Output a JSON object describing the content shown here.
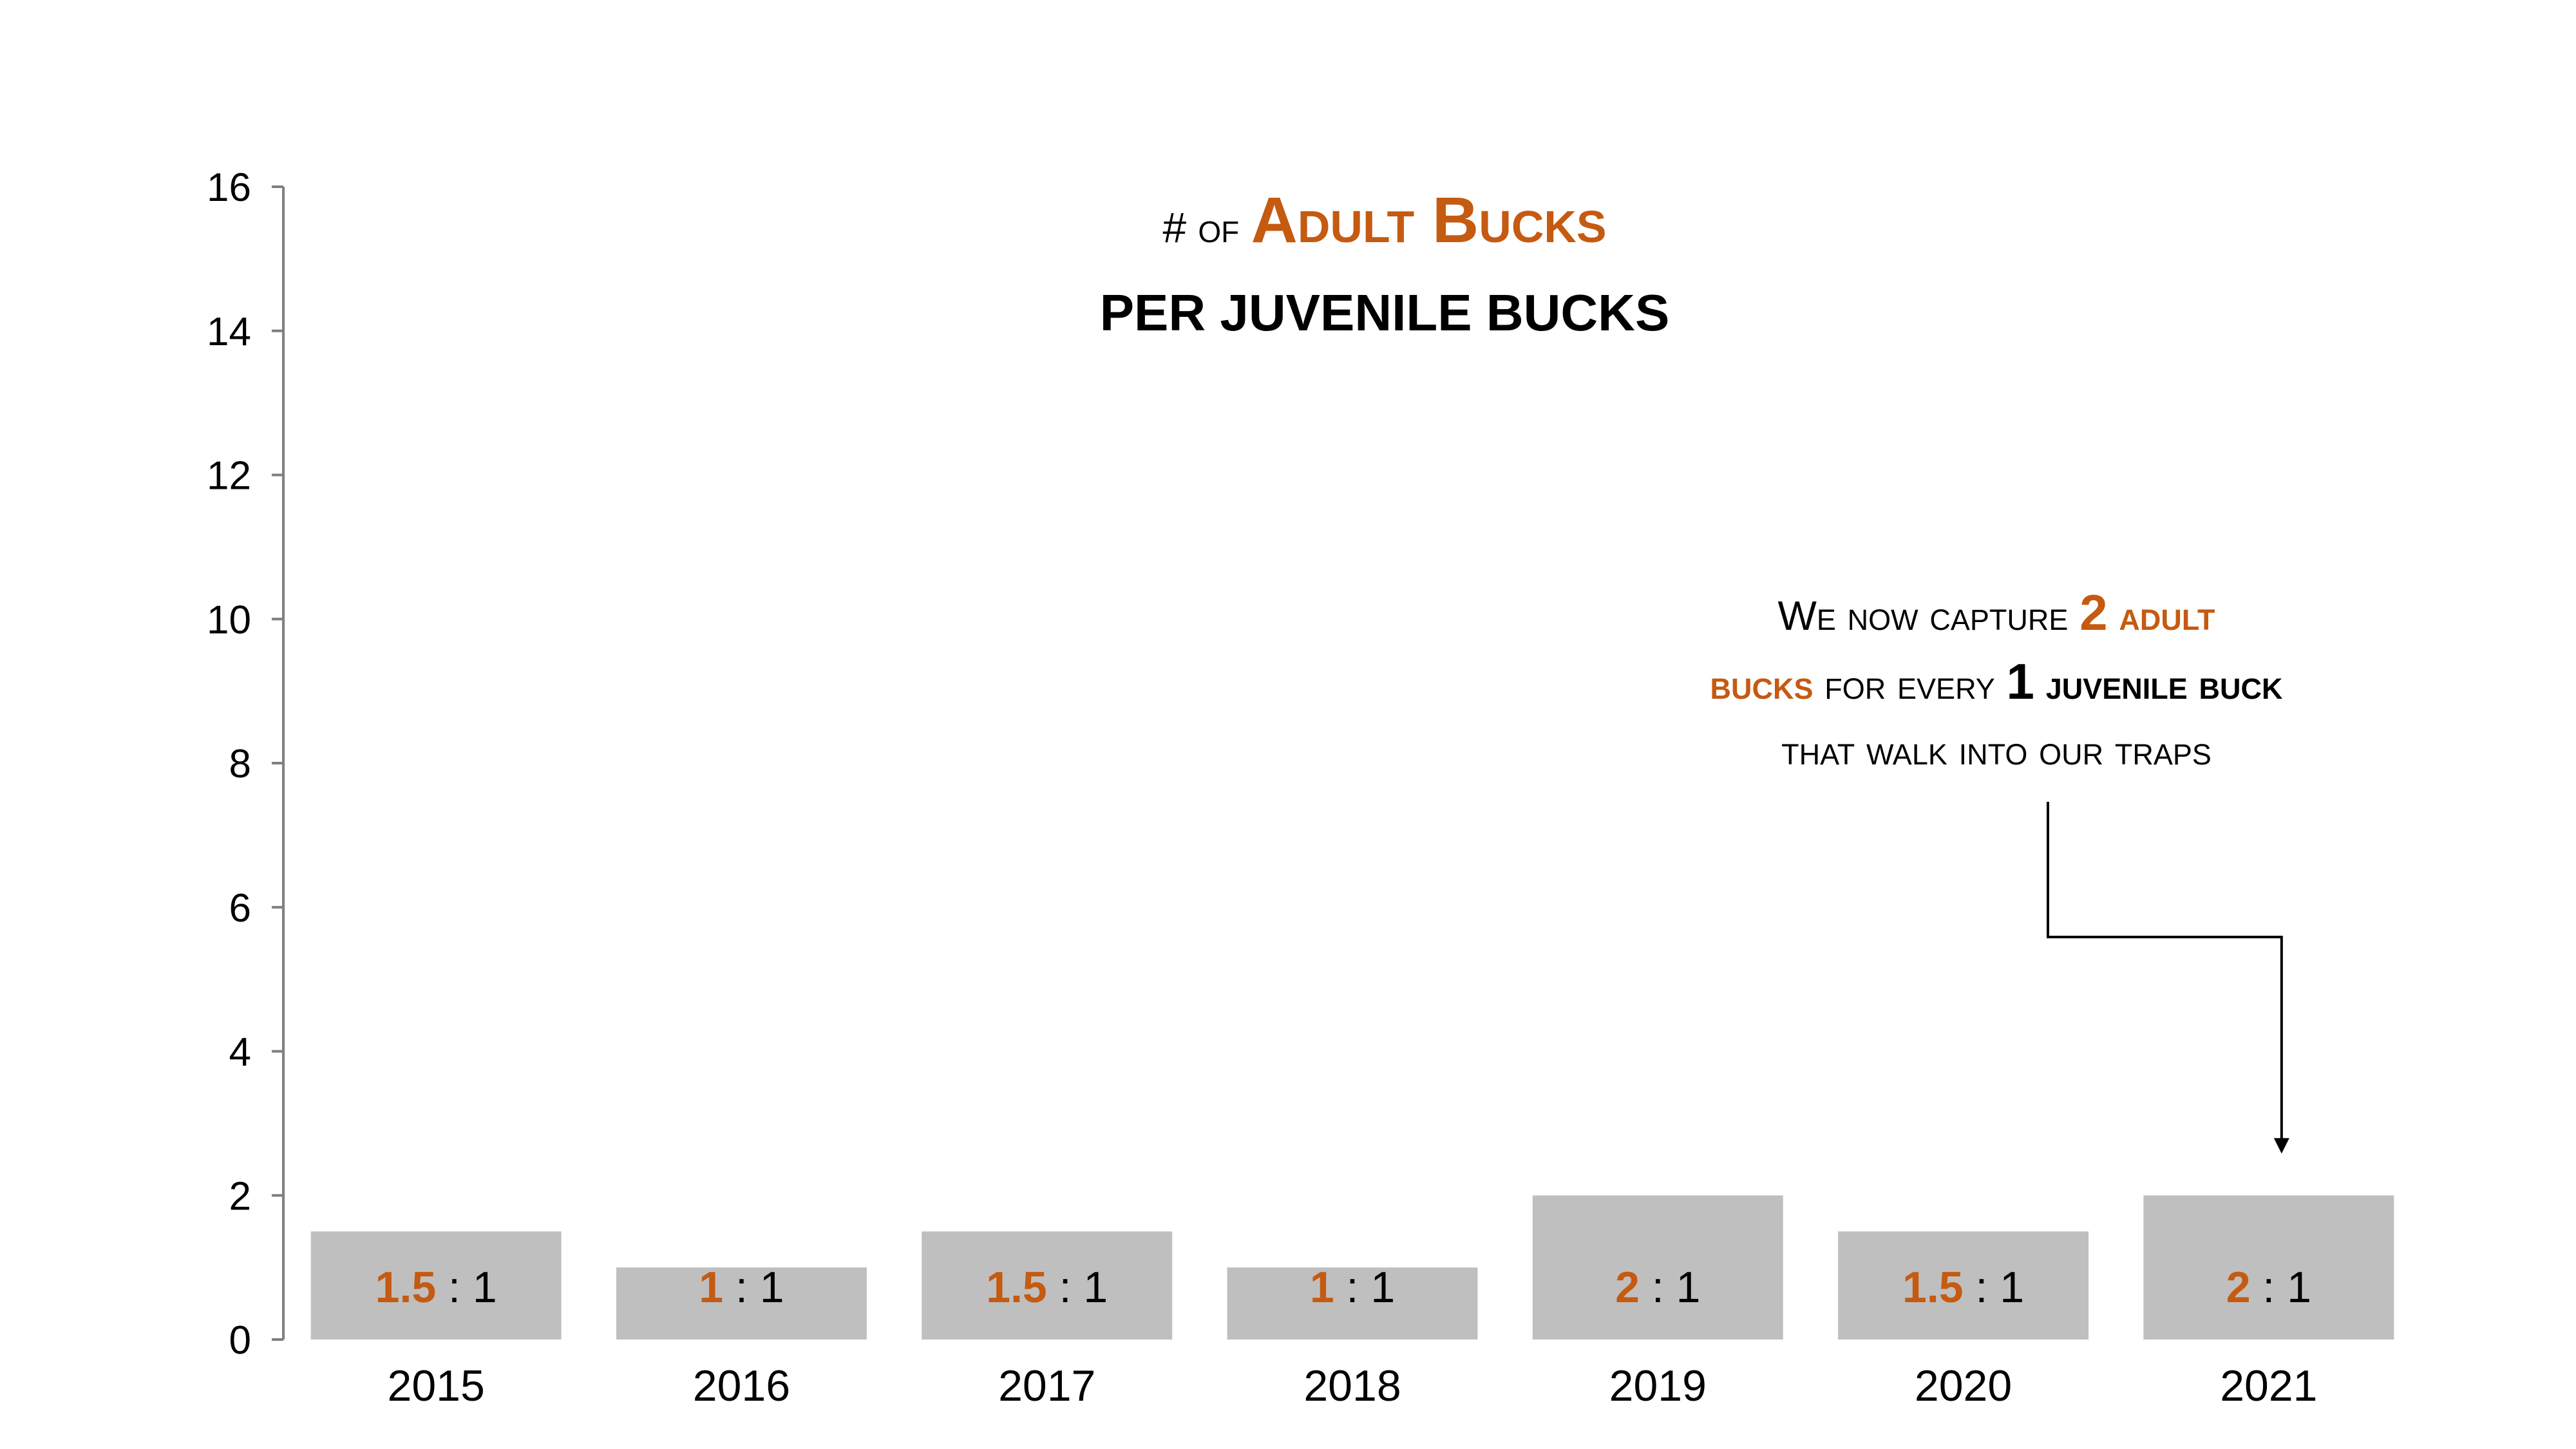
{
  "title": {
    "prefix": "# of",
    "highlight": "Adult Bucks",
    "subtitle": "PER JUVENILE BUCKS"
  },
  "annotation": {
    "part1": "We now capture",
    "num_adult": "2",
    "adult_word": "adult",
    "bucks_word": "bucks",
    "part2": "for every",
    "num_juvenile": "1",
    "juvenile_phrase": "juvenile buck",
    "part3": "that walk into our traps",
    "target_category": "2021"
  },
  "colors": {
    "bar": "#BFBFBF",
    "accent": "#C55A11",
    "axis": "#7F7F7F",
    "text": "#000000"
  },
  "chart_data": {
    "type": "bar",
    "categories": [
      "2015",
      "2016",
      "2017",
      "2018",
      "2019",
      "2020",
      "2021"
    ],
    "values": [
      1.5,
      1,
      1.5,
      1,
      2,
      1.5,
      2
    ],
    "data_labels": [
      {
        "ratio": "1.5",
        "sep": ":",
        "per": "1"
      },
      {
        "ratio": "1",
        "sep": ":",
        "per": "1"
      },
      {
        "ratio": "1.5",
        "sep": ":",
        "per": "1"
      },
      {
        "ratio": "1",
        "sep": ":",
        "per": "1"
      },
      {
        "ratio": "2",
        "sep": ":",
        "per": "1"
      },
      {
        "ratio": "1.5",
        "sep": ":",
        "per": "1"
      },
      {
        "ratio": "2",
        "sep": ":",
        "per": "1"
      }
    ],
    "ylim": [
      0,
      16
    ],
    "yticks": [
      0,
      2,
      4,
      6,
      8,
      10,
      12,
      14,
      16
    ],
    "title": "# of Adult Bucks per juvenile bucks",
    "xlabel": "",
    "ylabel": "",
    "grid": false,
    "legend": "none"
  }
}
